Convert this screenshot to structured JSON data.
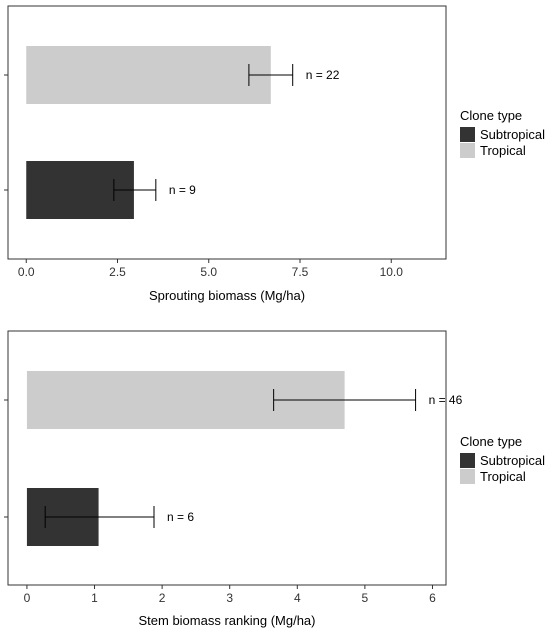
{
  "chart_data": [
    {
      "type": "bar",
      "orientation": "horizontal",
      "categories": [
        "Subtropical",
        "Tropical"
      ],
      "values": [
        2.95,
        6.7
      ],
      "error_low": [
        2.4,
        6.1
      ],
      "error_high": [
        3.55,
        7.3
      ],
      "annotations": [
        "n = 9",
        "n = 22"
      ],
      "xlabel": "Sprouting biomass (Mg/ha)",
      "xlim": [
        -0.5,
        11.5
      ],
      "xticks": [
        0.0,
        2.5,
        5.0,
        7.5,
        10.0
      ],
      "xtick_labels": [
        "0.0",
        "2.5",
        "5.0",
        "7.5",
        "10.0"
      ],
      "colors": {
        "Subtropical": "#333333",
        "Tropical": "#cccccc"
      },
      "grid": false,
      "legend": {
        "title": "Clone type",
        "entries": [
          "Subtropical",
          "Tropical"
        ],
        "placement": "right"
      }
    },
    {
      "type": "bar",
      "orientation": "horizontal",
      "categories": [
        "Subtropical",
        "Tropical"
      ],
      "values": [
        1.06,
        4.7
      ],
      "error_low": [
        0.27,
        3.65
      ],
      "error_high": [
        1.88,
        5.75
      ],
      "annotations": [
        "n = 6",
        "n = 46"
      ],
      "xlabel": "Stem biomass ranking (Mg/ha)",
      "xlim": [
        -0.28,
        6.2
      ],
      "xticks": [
        0,
        1,
        2,
        3,
        4,
        5,
        6
      ],
      "xtick_labels": [
        "0",
        "1",
        "2",
        "3",
        "4",
        "5",
        "6"
      ],
      "colors": {
        "Subtropical": "#333333",
        "Tropical": "#cccccc"
      },
      "grid": false,
      "legend": {
        "title": "Clone type",
        "entries": [
          "Subtropical",
          "Tropical"
        ],
        "placement": "right"
      }
    }
  ]
}
